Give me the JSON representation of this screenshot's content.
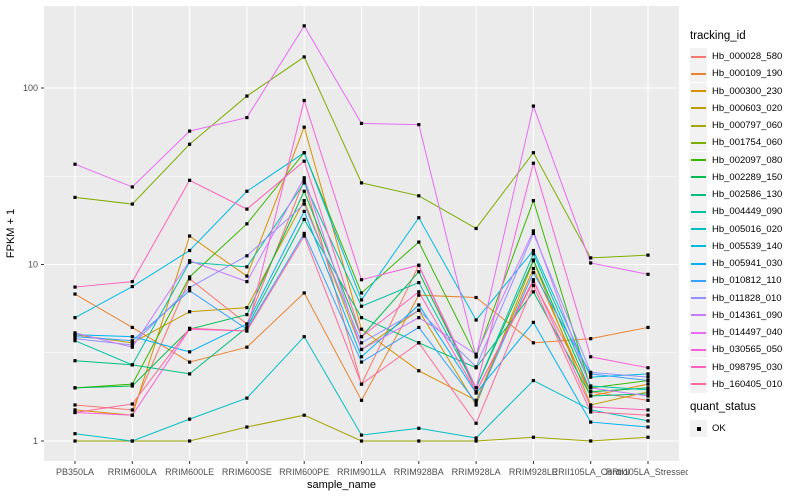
{
  "figure": {
    "background": "#FFFFFF",
    "panel_background": "#EBEBEB",
    "grid_color": "#FFFFFF",
    "tick_color": "#333333",
    "tick_text_color": "#4D4D4D",
    "axis_title_color": "#000000",
    "point_color": "#000000",
    "legend_key_background": "#F2F2F2"
  },
  "axes": {
    "y_title": "FPKM + 1",
    "x_title": "sample_name",
    "y_tick_labels": [
      "1",
      "10",
      "100"
    ]
  },
  "legend": {
    "tracking_title": "tracking_id",
    "quant_title": "quant_status",
    "quant_item_label": "OK"
  },
  "chart_data": {
    "type": "line",
    "title": "",
    "xlabel": "sample_name",
    "ylabel": "FPKM + 1",
    "y_scale": "log10",
    "ylim": [
      0.8,
      300
    ],
    "y_tick_values": [
      1,
      10,
      100
    ],
    "y_minor_tick_values": [
      3.1623,
      31.623
    ],
    "grid": true,
    "legend_title": "tracking_id",
    "legend_position": "right",
    "point_marker": "black-square",
    "x_categories": [
      "PB350LA",
      "RRIM600LA",
      "RRIM600LE",
      "RRIM600SE",
      "RRIM600PE",
      "RRIM901LA",
      "RRIM928BA",
      "RRIM928LA",
      "RRIM928LE",
      "RRII105LA_Control",
      "RRII105LA_Stressed"
    ],
    "series": [
      {
        "name": "Hb_000028_580",
        "color": "#F8766D",
        "values": [
          1.6,
          1.5,
          8.3,
          4.6,
          30,
          2.1,
          9.9,
          1.9,
          8.0,
          1.9,
          1.7
        ]
      },
      {
        "name": "Hb_000109_190",
        "color": "#EA8331",
        "values": [
          6.8,
          4.4,
          2.8,
          3.4,
          6.9,
          1.7,
          6.7,
          6.5,
          3.6,
          3.8,
          4.4
        ]
      },
      {
        "name": "Hb_000300_230",
        "color": "#D89000",
        "values": [
          1.5,
          1.4,
          14.5,
          8.6,
          60,
          4.3,
          2.5,
          1.7,
          9.5,
          1.8,
          2.1
        ]
      },
      {
        "name": "Hb_000603_020",
        "color": "#C09B00",
        "values": [
          4.0,
          3.6,
          5.4,
          5.7,
          23,
          3.3,
          5.5,
          1.6,
          10.5,
          1.6,
          1.9
        ]
      },
      {
        "name": "Hb_000797_060",
        "color": "#A3A500",
        "values": [
          1.0,
          1.0,
          1.0,
          1.2,
          1.4,
          1.0,
          1.0,
          1.0,
          1.05,
          1.0,
          1.05
        ]
      },
      {
        "name": "Hb_001754_060",
        "color": "#7CAE00",
        "values": [
          24,
          22,
          48,
          90,
          150,
          29,
          24.5,
          16,
          43,
          10.9,
          11.3
        ]
      },
      {
        "name": "Hb_002097_080",
        "color": "#39B600",
        "values": [
          2.0,
          2.1,
          8.5,
          17,
          43,
          6.9,
          13.4,
          3.0,
          23,
          2.0,
          2.2
        ]
      },
      {
        "name": "Hb_002289_150",
        "color": "#00BB4E",
        "values": [
          2.0,
          2.05,
          4.3,
          5.2,
          26,
          3.9,
          9.1,
          2.0,
          10.6,
          1.9,
          2.0
        ]
      },
      {
        "name": "Hb_002586_130",
        "color": "#00BF7D",
        "values": [
          2.85,
          2.7,
          2.4,
          4.4,
          18,
          5.0,
          3.6,
          2.6,
          7.0,
          1.8,
          1.85
        ]
      },
      {
        "name": "Hb_004449_090",
        "color": "#00C1A3",
        "values": [
          3.7,
          2.7,
          10.3,
          9.7,
          29,
          5.8,
          7.9,
          2.0,
          11.5,
          2.05,
          1.95
        ]
      },
      {
        "name": "Hb_005016_020",
        "color": "#00BFC4",
        "values": [
          1.1,
          1.0,
          1.33,
          1.75,
          3.9,
          1.08,
          1.18,
          1.04,
          2.2,
          1.5,
          1.3
        ]
      },
      {
        "name": "Hb_005539_140",
        "color": "#00BAE0",
        "values": [
          5.0,
          7.5,
          12,
          26,
          43,
          6.3,
          18.4,
          4.85,
          12,
          2.3,
          2.4
        ]
      },
      {
        "name": "Hb_005941_030",
        "color": "#00B0F6",
        "values": [
          4.0,
          3.9,
          3.2,
          4.6,
          20,
          3.0,
          5.9,
          1.87,
          4.7,
          1.28,
          1.2
        ]
      },
      {
        "name": "Hb_010812_110",
        "color": "#35A2FF",
        "values": [
          3.9,
          3.7,
          7.1,
          4.3,
          15,
          2.8,
          4.4,
          1.65,
          9.0,
          2.4,
          2.2
        ]
      },
      {
        "name": "Hb_011828_010",
        "color": "#9590FF",
        "values": [
          3.8,
          3.5,
          7.4,
          11.2,
          22,
          3.6,
          5.5,
          2.63,
          15,
          2.45,
          2.3
        ]
      },
      {
        "name": "Hb_014361_090",
        "color": "#C77CFF",
        "values": [
          4.1,
          3.4,
          10.5,
          8.0,
          31,
          3.3,
          5.0,
          3.1,
          15.5,
          2.0,
          1.8
        ]
      },
      {
        "name": "Hb_014497_040",
        "color": "#E76BF3",
        "values": [
          37,
          27.5,
          57,
          68,
          225,
          63,
          62,
          3.0,
          79,
          10.2,
          8.8
        ]
      },
      {
        "name": "Hb_030565_050",
        "color": "#FA62DB",
        "values": [
          1.45,
          1.4,
          4.3,
          4.2,
          85,
          8.2,
          9.9,
          2.0,
          37.5,
          3.0,
          2.6
        ]
      },
      {
        "name": "Hb_098795_030",
        "color": "#FF62BC",
        "values": [
          7.45,
          8.0,
          30,
          20.6,
          38.5,
          3.9,
          7.0,
          1.9,
          8.2,
          1.56,
          1.5
        ]
      },
      {
        "name": "Hb_160405_010",
        "color": "#FF6A98",
        "values": [
          1.45,
          1.62,
          4.35,
          4.2,
          14.5,
          2.1,
          3.6,
          1.26,
          7.6,
          1.46,
          1.4
        ]
      }
    ]
  }
}
